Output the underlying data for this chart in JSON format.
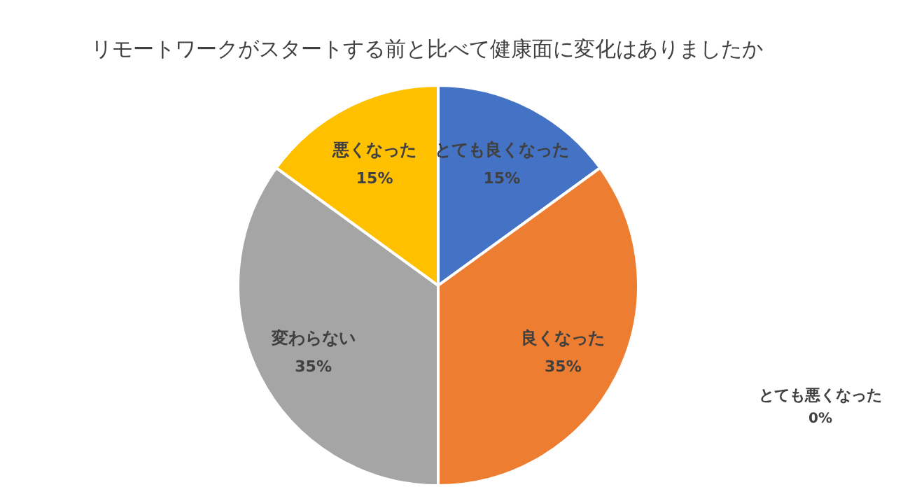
{
  "chart_data": {
    "type": "pie",
    "title": "リモートワークがスタートする前と比べて健康面に変化はありましたか",
    "categories": [
      "とても良くなった",
      "良くなった",
      "とても悪くなった",
      "変わらない",
      "悪くなった"
    ],
    "values": [
      15,
      35,
      0,
      35,
      15
    ],
    "value_labels": [
      "15%",
      "35%",
      "0%",
      "35%",
      "15%"
    ],
    "colors": [
      "#4472c4",
      "#ed7d31",
      "#5b9bd5",
      "#a5a5a5",
      "#ffc000"
    ]
  }
}
